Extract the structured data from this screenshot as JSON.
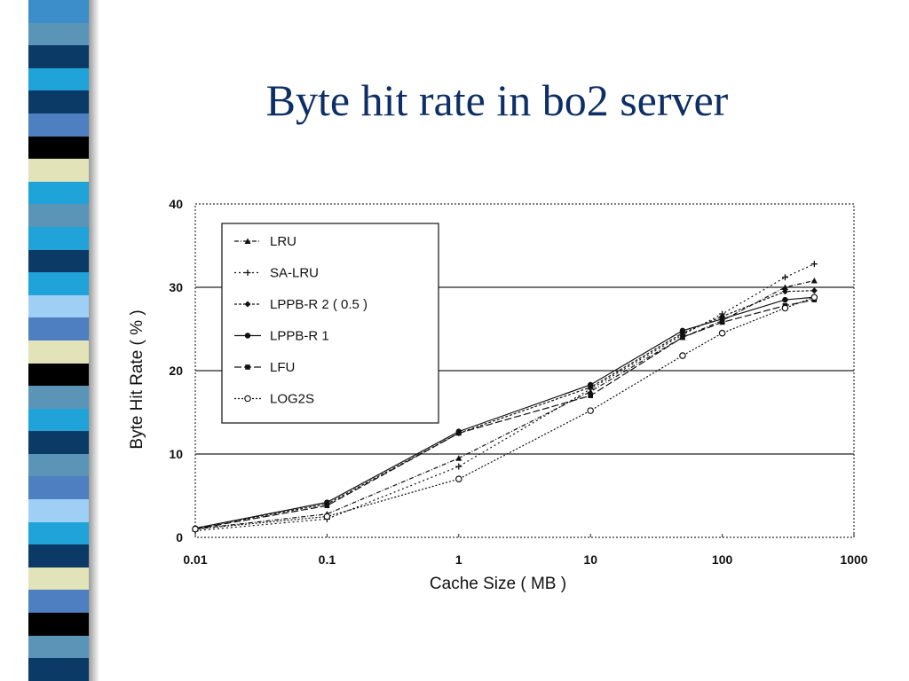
{
  "slide": {
    "title": "Byte hit rate in bo2 server",
    "stripe_colors": [
      "#3b8ec9",
      "#5a95b8",
      "#0b3a66",
      "#1fa3d9",
      "#0b3a66",
      "#4e7fc0",
      "#000000",
      "#e3e3b9",
      "#1fa3d9",
      "#5a95b8",
      "#1fa3d9",
      "#0b3a66",
      "#1fa3d9",
      "#9fcff5",
      "#4e7fc0",
      "#e3e3b9",
      "#000000",
      "#5a95b8",
      "#1fa3d9",
      "#0b3a66",
      "#5a95b8",
      "#4e7fc0",
      "#9fcff5",
      "#1fa3d9",
      "#0b3a66",
      "#e3e3b9",
      "#4e7fc0",
      "#000000",
      "#5a95b8",
      "#0b3a66"
    ]
  },
  "chart_data": {
    "type": "line",
    "title": "",
    "xlabel": "Cache Size ( MB )",
    "ylabel": "Byte Hit Rate ( % )",
    "x_scale": "log",
    "xlim": [
      0.01,
      1000
    ],
    "ylim": [
      0,
      40
    ],
    "x_tick_labels": [
      "0.01",
      "0.1",
      "1",
      "10",
      "100",
      "1000"
    ],
    "y_tick_labels": [
      "0",
      "10",
      "20",
      "30",
      "40"
    ],
    "gridlines_y": [
      10,
      20,
      30
    ],
    "legend_position": "top-left",
    "x": [
      0.01,
      0.1,
      1,
      10,
      50,
      100,
      300,
      500
    ],
    "series": [
      {
        "name": "LRU",
        "values": [
          1.0,
          2.8,
          9.5,
          17.5,
          24.0,
          26.0,
          30.0,
          30.8
        ]
      },
      {
        "name": "SA-LRU",
        "values": [
          0.8,
          2.2,
          8.5,
          17.8,
          24.3,
          26.8,
          31.2,
          32.8
        ]
      },
      {
        "name": "LPPB-R 2 ( 0.5 )",
        "values": [
          1.1,
          4.0,
          12.5,
          18.0,
          24.5,
          26.5,
          29.5,
          29.6
        ]
      },
      {
        "name": "LPPB-R 1",
        "values": [
          1.1,
          4.2,
          12.7,
          18.3,
          24.8,
          26.2,
          28.5,
          28.8
        ]
      },
      {
        "name": "LFU",
        "values": [
          1.0,
          3.8,
          12.5,
          17.0,
          24.0,
          25.8,
          27.8,
          28.5
        ]
      },
      {
        "name": "LOG2S",
        "values": [
          1.0,
          2.5,
          7.0,
          15.2,
          21.8,
          24.5,
          27.5,
          28.8
        ]
      }
    ]
  }
}
